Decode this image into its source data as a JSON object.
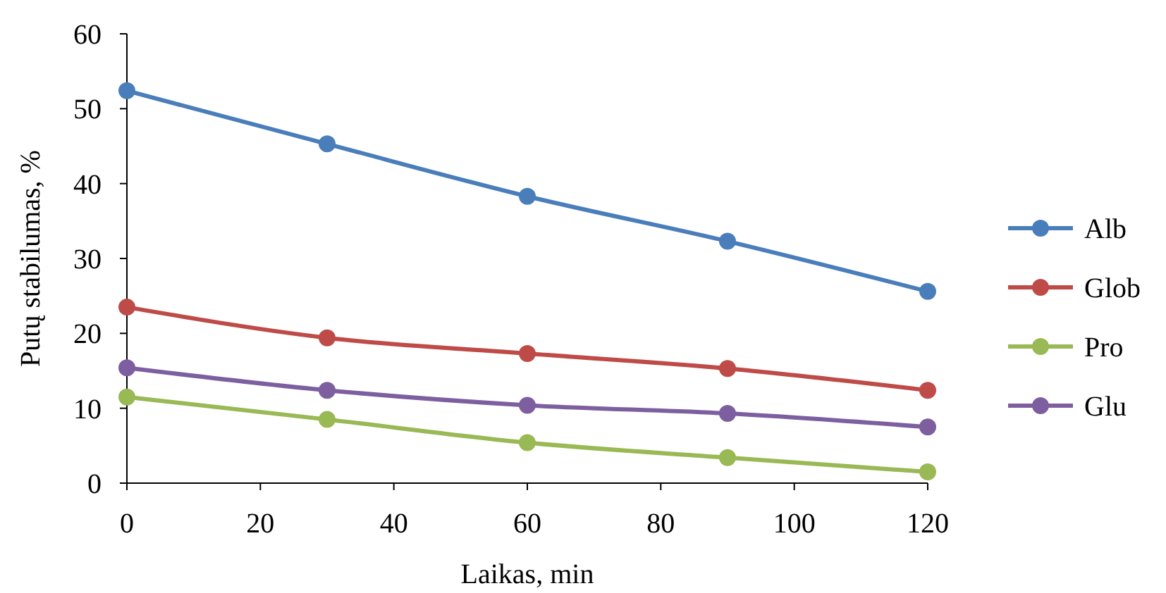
{
  "chart_data": {
    "type": "line",
    "xlabel": "Laikas, min",
    "ylabel": "Putų stabilumas, %",
    "x": [
      0,
      30,
      60,
      90,
      120
    ],
    "xlim": [
      0,
      120
    ],
    "xticks": [
      0,
      20,
      40,
      60,
      80,
      100,
      120
    ],
    "ylim": [
      0,
      60
    ],
    "yticks": [
      0,
      10,
      20,
      30,
      40,
      50,
      60
    ],
    "grid": false,
    "legend": "right",
    "marker": "circle",
    "line_style": "solid",
    "series": [
      {
        "name": "Alb",
        "color": "#4a7ebb",
        "values": [
          52.4,
          45.3,
          38.3,
          32.3,
          25.6
        ]
      },
      {
        "name": "Glob",
        "color": "#be4b48",
        "values": [
          23.5,
          19.4,
          17.3,
          15.3,
          12.4
        ]
      },
      {
        "name": "Pro",
        "color": "#98b954",
        "values": [
          11.5,
          8.5,
          5.4,
          3.4,
          1.5
        ]
      },
      {
        "name": "Glu",
        "color": "#7d5fa0",
        "values": [
          15.4,
          12.4,
          10.4,
          9.3,
          7.5
        ]
      }
    ]
  }
}
